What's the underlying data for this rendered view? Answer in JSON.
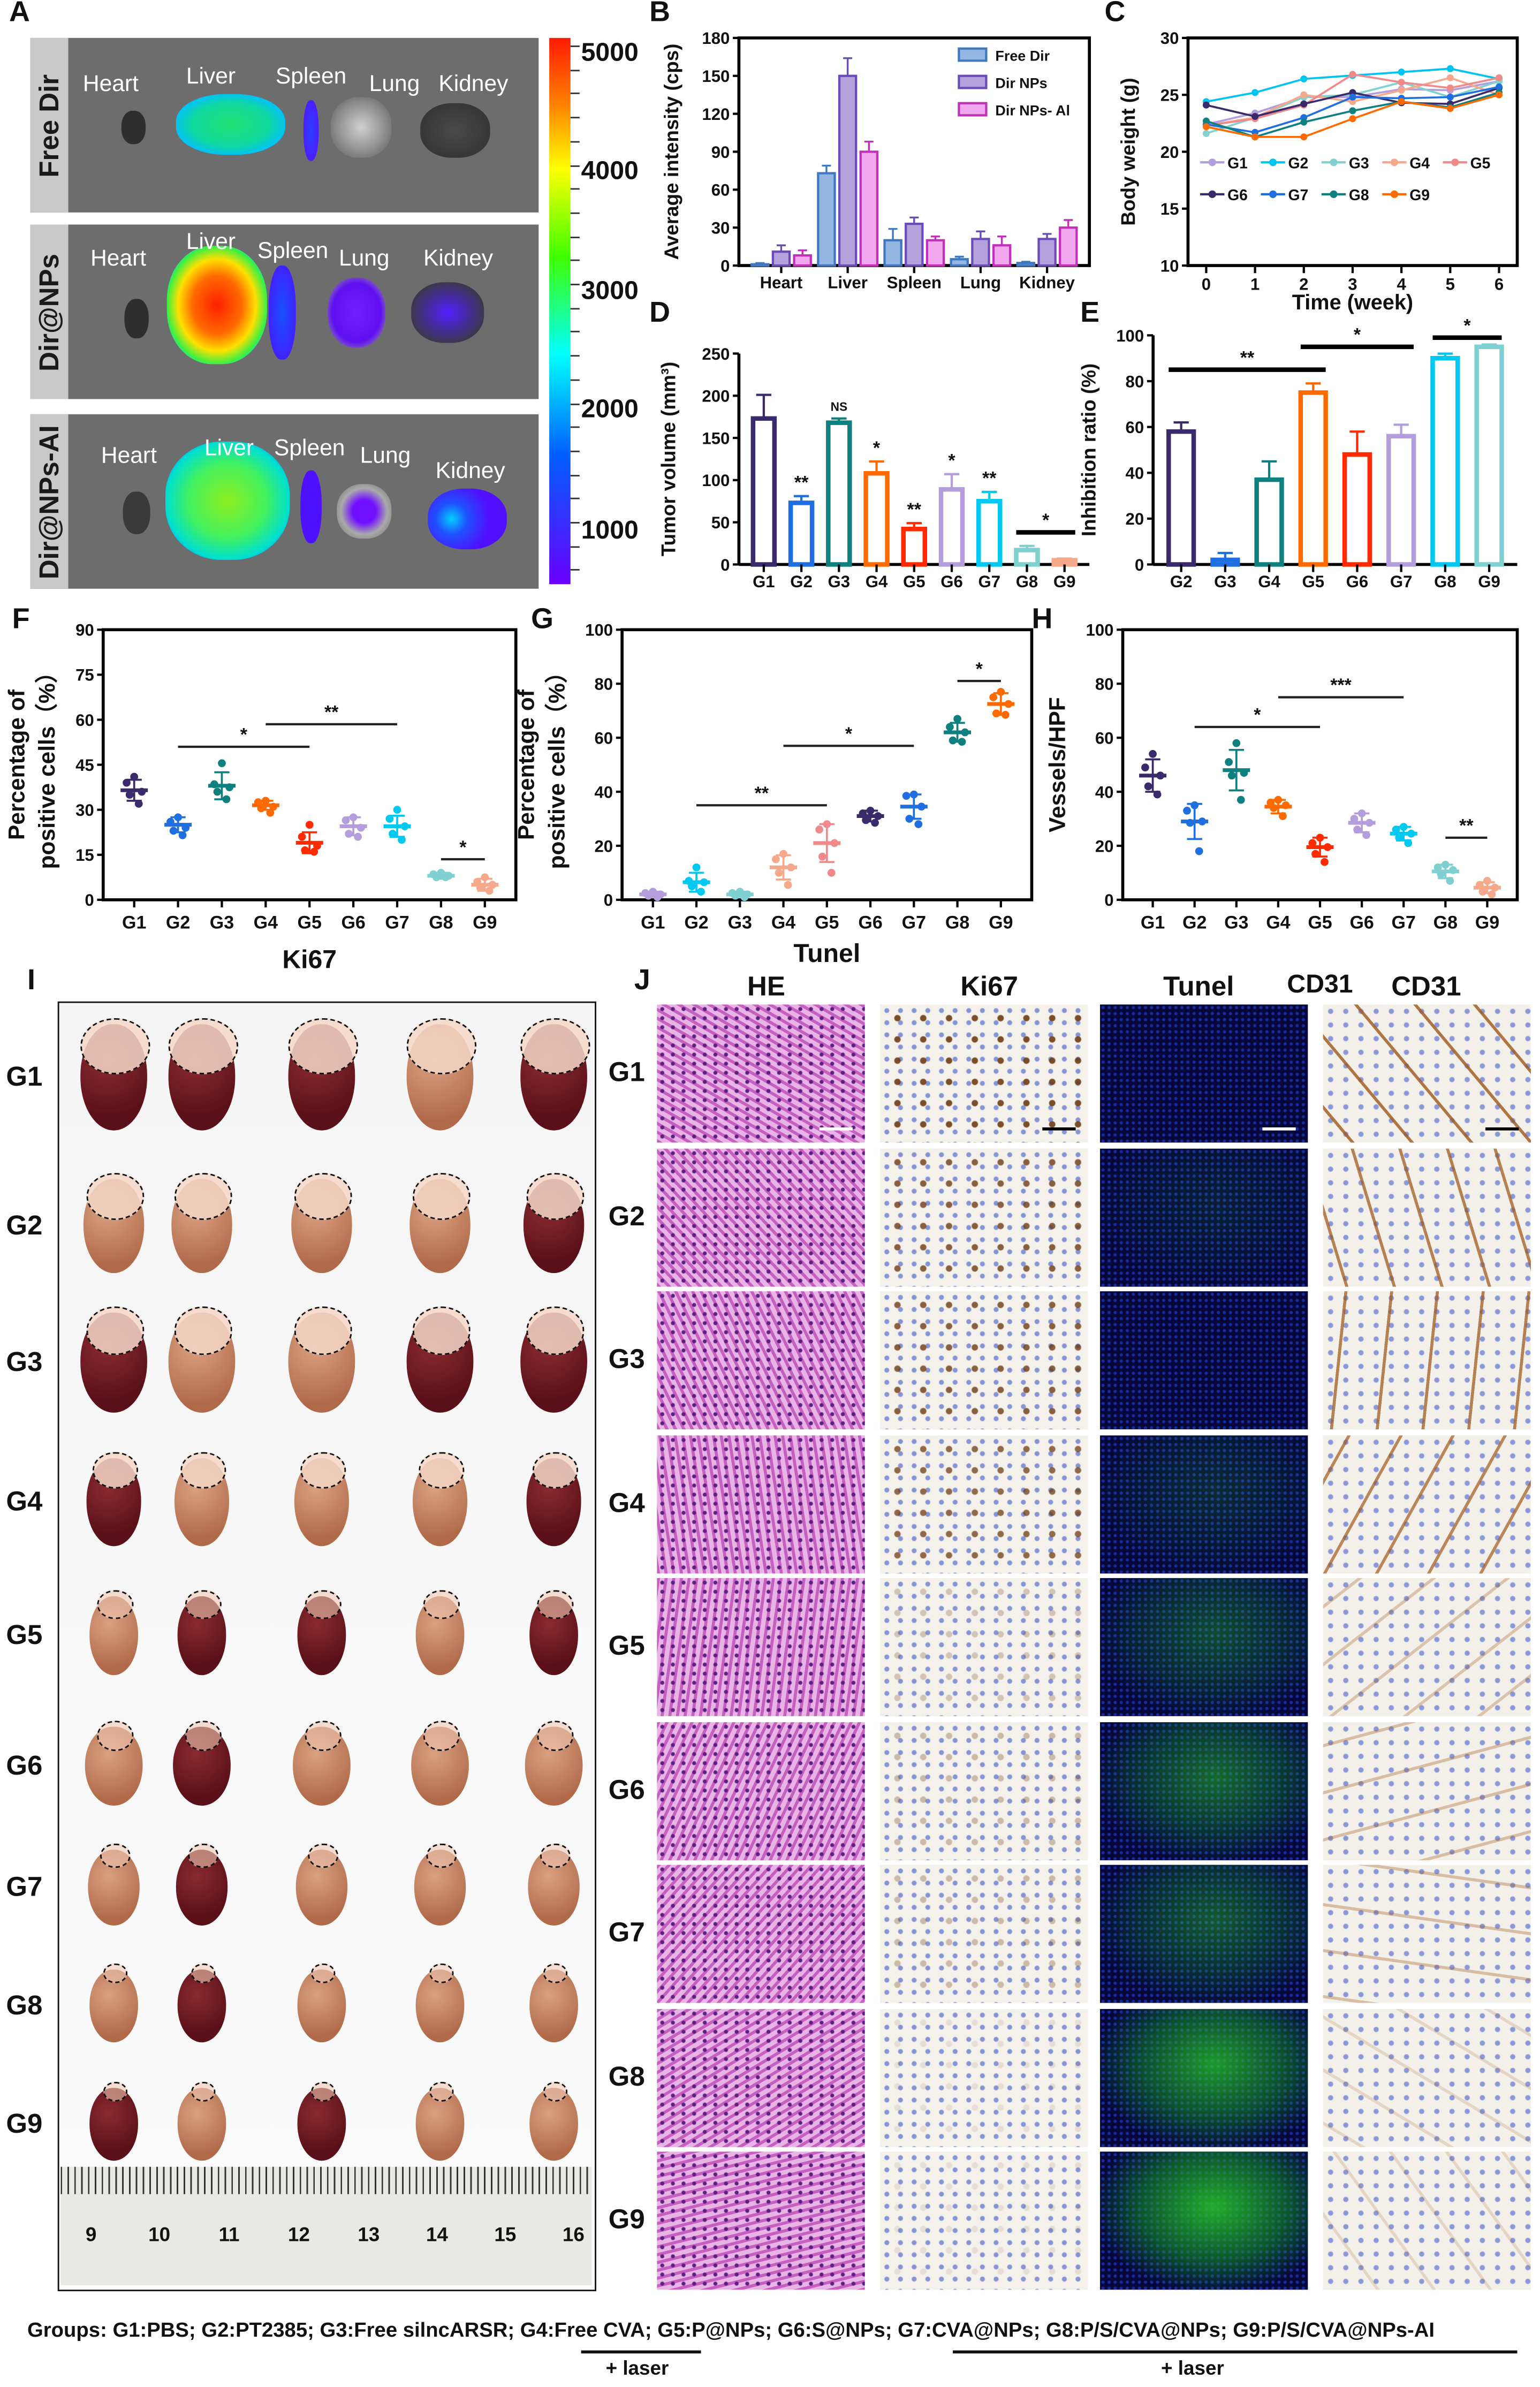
{
  "panel_labels": {
    "A": "A",
    "B": "B",
    "C": "C",
    "D": "D",
    "E": "E",
    "F": "F",
    "G": "G",
    "H": "H",
    "I": "I",
    "J": "J"
  },
  "panel_a": {
    "rows": [
      {
        "label": "Free Dir",
        "organs": [
          "Heart",
          "Liver",
          "Spleen",
          "Lung",
          "Kidney"
        ]
      },
      {
        "label": "Dir@NPs",
        "organs": [
          "Heart",
          "Liver",
          "Spleen",
          "Lung",
          "Kidney"
        ]
      },
      {
        "label": "Dir@NPs-AI",
        "organs": [
          "Heart",
          "Liver",
          "Spleen",
          "Lung",
          "Kidney"
        ]
      }
    ],
    "colorbar": {
      "ticks": [
        "5000",
        "4000",
        "3000",
        "2000",
        "1000"
      ]
    }
  },
  "panel_i": {
    "groups": [
      "G1",
      "G2",
      "G3",
      "G4",
      "G5",
      "G6",
      "G7",
      "G8",
      "G9"
    ],
    "ruler": [
      "9",
      "10",
      "11",
      "12",
      "13",
      "14",
      "15",
      "16"
    ]
  },
  "panel_j": {
    "columns": [
      "HE",
      "Ki67",
      "Tunel",
      "CD31"
    ],
    "groups": [
      "G1",
      "G2",
      "G3",
      "G4",
      "G5",
      "G6",
      "G7",
      "G8",
      "G9"
    ]
  },
  "caption": {
    "text": "Groups: G1:PBS; G2:PT2385; G3:Free silncARSR; G4:Free CVA; G5:P@NPs; G6:S@NPs;  G7:CVA@NPs; G8:P/S/CVA@NPs; G9:P/S/CVA@NPs-AI",
    "laser_1": "+ laser",
    "laser_2": "+ laser"
  },
  "chart_data": [
    {
      "panel": "B",
      "type": "bar",
      "ylabel": "Average intensity (cps)",
      "xlabel": "",
      "ylim": [
        0,
        180
      ],
      "yticks": [
        "0",
        "30",
        "60",
        "90",
        "120",
        "150",
        "180"
      ],
      "categories": [
        "Heart",
        "Liver",
        "Spleen",
        "Lung",
        "Kidney"
      ],
      "legend": "top-right",
      "series": [
        {
          "name": "Free Dir",
          "values": [
            1,
            73,
            20,
            5,
            2
          ],
          "errors": [
            1,
            6,
            9,
            2,
            1
          ],
          "color": "#3f78c0",
          "fill": "#93b6e2"
        },
        {
          "name": "Dir NPs",
          "values": [
            11,
            150,
            33,
            21,
            21
          ],
          "errors": [
            5,
            14,
            5,
            6,
            4
          ],
          "color": "#6a4cb8",
          "fill": "#b4a2dc"
        },
        {
          "name": "Dir NPs- Al",
          "values": [
            8,
            90,
            20,
            16,
            30
          ],
          "errors": [
            4,
            8,
            3,
            7,
            6
          ],
          "color": "#c030b8",
          "fill": "#f2a8ee"
        }
      ]
    },
    {
      "panel": "C",
      "type": "line",
      "xlabel": "Time (week)",
      "ylabel": "Body weight (g)",
      "x": [
        0,
        1,
        2,
        3,
        4,
        5,
        6
      ],
      "xticks": [
        "0",
        "1",
        "2",
        "3",
        "4",
        "5",
        "6"
      ],
      "ylim": [
        10,
        30
      ],
      "yticks": [
        "10",
        "15",
        "20",
        "25",
        "30"
      ],
      "series": [
        {
          "name": "G1",
          "values": [
            22.4,
            23.4,
            24.8,
            24.8,
            25.5,
            25.4,
            26.2
          ],
          "color": "#b39ddb"
        },
        {
          "name": "G2",
          "values": [
            24.4,
            25.2,
            26.4,
            26.7,
            27.0,
            27.3,
            26.4
          ],
          "color": "#00c4f0"
        },
        {
          "name": "G3",
          "values": [
            21.6,
            23.0,
            24.8,
            25.0,
            26.1,
            24.8,
            26.2
          ],
          "color": "#80d0d0"
        },
        {
          "name": "G4",
          "values": [
            22.3,
            23.0,
            25.0,
            24.4,
            25.4,
            26.5,
            25.0
          ],
          "color": "#f5a98a"
        },
        {
          "name": "G5",
          "values": [
            22.3,
            22.9,
            24.1,
            26.8,
            26.1,
            25.6,
            26.5
          ],
          "color": "#f08a8a"
        },
        {
          "name": "G6",
          "values": [
            24.1,
            23.1,
            24.2,
            25.2,
            24.3,
            24.2,
            25.6
          ],
          "color": "#3b2a6b"
        },
        {
          "name": "G7",
          "values": [
            22.4,
            21.7,
            23.0,
            24.8,
            24.7,
            24.8,
            25.7
          ],
          "color": "#1f6fe0"
        },
        {
          "name": "G8",
          "values": [
            22.7,
            21.3,
            22.6,
            23.6,
            24.4,
            23.9,
            25.2
          ],
          "color": "#0f8080"
        },
        {
          "name": "G9",
          "values": [
            22.2,
            21.3,
            21.3,
            22.9,
            24.4,
            23.8,
            25.0
          ],
          "color": "#ff6a00"
        }
      ]
    },
    {
      "panel": "D",
      "type": "bar",
      "ylabel": "Tumor volume (mm³)",
      "xlabel": "",
      "ylim": [
        0,
        250
      ],
      "yticks": [
        "0",
        "50",
        "100",
        "150",
        "200",
        "250"
      ],
      "categories": [
        "G1",
        "G2",
        "G3",
        "G4",
        "G5",
        "G6",
        "G7",
        "G8",
        "G9"
      ],
      "values": [
        173,
        73,
        168,
        108,
        42,
        89,
        75,
        17,
        5
      ],
      "errors": [
        28,
        8,
        5,
        14,
        7,
        18,
        11,
        5,
        2
      ],
      "colors": [
        "#3b2a6b",
        "#1f6fe0",
        "#0f8080",
        "#ff6a00",
        "#ff2a00",
        "#b39ddb",
        "#00c8f0",
        "#7fd0d0",
        "#f5a98a"
      ],
      "annotations": [
        "",
        "**",
        "NS",
        "*",
        "**",
        "*",
        "**",
        "",
        ""
      ],
      "brackets": [
        {
          "from": "G8",
          "to": "G9",
          "label": "*"
        }
      ]
    },
    {
      "panel": "E",
      "type": "bar",
      "ylabel": "Inhibition ratio (%)",
      "xlabel": "",
      "ylim": [
        0,
        100
      ],
      "yticks": [
        "0",
        "20",
        "40",
        "60",
        "80",
        "100"
      ],
      "categories": [
        "G2",
        "G3",
        "G4",
        "G5",
        "G6",
        "G7",
        "G8",
        "G9"
      ],
      "values": [
        58,
        2,
        37,
        75,
        48,
        56,
        90,
        95
      ],
      "errors": [
        4,
        3,
        8,
        4,
        10,
        5,
        2,
        1
      ],
      "colors": [
        "#3b2a6b",
        "#1f6fe0",
        "#0f8080",
        "#ff6a00",
        "#ff2a00",
        "#b39ddb",
        "#00c8f0",
        "#7fd0d0"
      ],
      "brackets": [
        {
          "from": "G2",
          "to": "G5",
          "label": "**"
        },
        {
          "from": "G5",
          "to": "G7",
          "label": "*"
        },
        {
          "from": "G8",
          "to": "G9",
          "label": "*"
        }
      ]
    },
    {
      "panel": "F",
      "type": "scatter",
      "xlabel": "Ki67",
      "ylabel": [
        "Percentage of",
        "positive cells（%）"
      ],
      "ylim": [
        0,
        90
      ],
      "yticks": [
        "0",
        "15",
        "30",
        "45",
        "60",
        "75",
        "90"
      ],
      "categories": [
        "G1",
        "G2",
        "G3",
        "G4",
        "G5",
        "G6",
        "G7",
        "G8",
        "G9"
      ],
      "colors": [
        "#3b2a6b",
        "#1f6fe0",
        "#0f8080",
        "#ff6a00",
        "#ff2a00",
        "#b39ddb",
        "#00c8f0",
        "#7fd0d0",
        "#f5a98a"
      ],
      "groups": [
        {
          "name": "G1",
          "points": [
            41,
            39,
            36,
            35,
            32
          ],
          "mean": 36.5,
          "sd": 3.5
        },
        {
          "name": "G2",
          "points": [
            27.5,
            26,
            24,
            23,
            21.5
          ],
          "mean": 25,
          "sd": 2.5
        },
        {
          "name": "G3",
          "points": [
            45.5,
            38.5,
            37.5,
            36,
            33.5
          ],
          "mean": 38,
          "sd": 4.5
        },
        {
          "name": "G4",
          "points": [
            33,
            32.5,
            31,
            30.5,
            29
          ],
          "mean": 31.5,
          "sd": 1.5
        },
        {
          "name": "G5",
          "points": [
            25,
            21,
            18,
            16.5,
            16
          ],
          "mean": 19,
          "sd": 3.5
        },
        {
          "name": "G6",
          "points": [
            27.5,
            26.5,
            24,
            22,
            21
          ],
          "mean": 24.5,
          "sd": 3
        },
        {
          "name": "G7",
          "points": [
            30,
            27,
            24.5,
            22,
            20
          ],
          "mean": 24.5,
          "sd": 3.5
        },
        {
          "name": "G8",
          "points": [
            9,
            8.5,
            8,
            7.5,
            7.5
          ],
          "mean": 8,
          "sd": 1
        },
        {
          "name": "G9",
          "points": [
            7.5,
            6,
            5,
            4,
            3
          ],
          "mean": 5,
          "sd": 2
        }
      ],
      "brackets": [
        {
          "from": "G2",
          "to": "G5",
          "label": "*"
        },
        {
          "from": "G4",
          "to": "G7",
          "label": "**"
        },
        {
          "from": "G8",
          "to": "G9",
          "label": "*"
        }
      ]
    },
    {
      "panel": "G",
      "type": "scatter",
      "xlabel": "Tunel",
      "ylabel": [
        "Percentage of",
        "positive cells（%）"
      ],
      "ylim": [
        0,
        100
      ],
      "yticks": [
        "0",
        "20",
        "40",
        "60",
        "80",
        "100"
      ],
      "categories": [
        "G1",
        "G2",
        "G3",
        "G4",
        "G5",
        "G6",
        "G7",
        "G8",
        "G9"
      ],
      "colors": [
        "#b39ddb",
        "#00c8f0",
        "#7fd0d0",
        "#f5a98a",
        "#f08a8a",
        "#3b2a6b",
        "#1f6fe0",
        "#0f8080",
        "#ff6a00"
      ],
      "groups": [
        {
          "name": "G1",
          "points": [
            3,
            2.5,
            2,
            1.5,
            1
          ],
          "mean": 2,
          "sd": 1
        },
        {
          "name": "G2",
          "points": [
            12,
            7,
            6.5,
            5,
            3
          ],
          "mean": 6.5,
          "sd": 3.5
        },
        {
          "name": "G3",
          "points": [
            3,
            2.5,
            2,
            1.5,
            1
          ],
          "mean": 2,
          "sd": 1
        },
        {
          "name": "G4",
          "points": [
            17,
            15,
            12,
            10,
            5.5
          ],
          "mean": 12,
          "sd": 4.5
        },
        {
          "name": "G5",
          "points": [
            28,
            26,
            21,
            16,
            10
          ],
          "mean": 21,
          "sd": 7
        },
        {
          "name": "G6",
          "points": [
            33,
            32,
            31,
            29.5,
            28.5
          ],
          "mean": 31,
          "sd": 2
        },
        {
          "name": "G7",
          "points": [
            39,
            38.5,
            34.5,
            30,
            28
          ],
          "mean": 34.5,
          "sd": 4.5
        },
        {
          "name": "G8",
          "points": [
            67,
            64,
            62,
            59,
            58.5
          ],
          "mean": 62,
          "sd": 3.5
        },
        {
          "name": "G9",
          "points": [
            77,
            75,
            72.5,
            69,
            68.5
          ],
          "mean": 72.5,
          "sd": 4
        }
      ],
      "brackets": [
        {
          "from": "G2",
          "to": "G5",
          "label": "**"
        },
        {
          "from": "G4",
          "to": "G7",
          "label": "*"
        },
        {
          "from": "G8",
          "to": "G9",
          "label": "*"
        }
      ]
    },
    {
      "panel": "H",
      "type": "scatter",
      "xlabel": "CD31",
      "ylabel": [
        "Vessels/HPF"
      ],
      "ylim": [
        0,
        100
      ],
      "yticks": [
        "0",
        "20",
        "40",
        "60",
        "80",
        "100"
      ],
      "categories": [
        "G1",
        "G2",
        "G3",
        "G4",
        "G5",
        "G6",
        "G7",
        "G8",
        "G9"
      ],
      "colors": [
        "#3b2a6b",
        "#1f6fe0",
        "#0f8080",
        "#ff6a00",
        "#ff2a00",
        "#b39ddb",
        "#00c8f0",
        "#7fd0d0",
        "#f5a98a"
      ],
      "groups": [
        {
          "name": "G1",
          "points": [
            54,
            49,
            46,
            42,
            39
          ],
          "mean": 46,
          "sd": 6
        },
        {
          "name": "G2",
          "points": [
            35,
            33,
            29,
            28.5,
            18
          ],
          "mean": 29,
          "sd": 6.5
        },
        {
          "name": "G3",
          "points": [
            58,
            51,
            47,
            46,
            37
          ],
          "mean": 48,
          "sd": 7.5
        },
        {
          "name": "G4",
          "points": [
            37,
            36,
            35,
            34,
            31
          ],
          "mean": 34.5,
          "sd": 2.5
        },
        {
          "name": "G5",
          "points": [
            23,
            21,
            19.5,
            17,
            14
          ],
          "mean": 19.5,
          "sd": 3.5
        },
        {
          "name": "G6",
          "points": [
            32,
            30,
            28.5,
            26,
            24
          ],
          "mean": 28.5,
          "sd": 3.5
        },
        {
          "name": "G7",
          "points": [
            27,
            26,
            24.5,
            23,
            21
          ],
          "mean": 24.5,
          "sd": 2.5
        },
        {
          "name": "G8",
          "points": [
            13,
            12,
            11,
            9.5,
            7
          ],
          "mean": 10.5,
          "sd": 2.5
        },
        {
          "name": "G9",
          "points": [
            7,
            5.5,
            4.5,
            3,
            2
          ],
          "mean": 4.5,
          "sd": 2
        }
      ],
      "brackets": [
        {
          "from": "G2",
          "to": "G5",
          "label": "*"
        },
        {
          "from": "G4",
          "to": "G7",
          "label": "***"
        },
        {
          "from": "G8",
          "to": "G9",
          "label": "**"
        }
      ]
    }
  ]
}
